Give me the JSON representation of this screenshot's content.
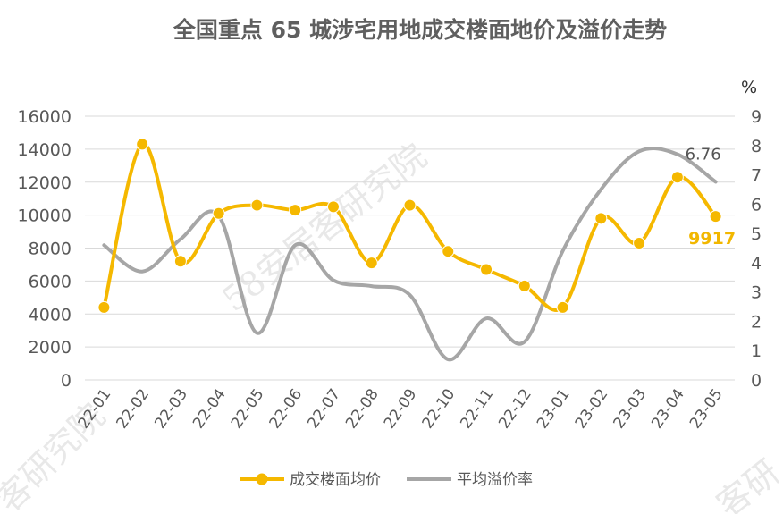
{
  "chart_data": {
    "type": "line",
    "title": "全国重点 65 城涉宅用地成交楼面地价及溢价走势",
    "categories": [
      "22-01",
      "22-02",
      "22-03",
      "22-04",
      "22-05",
      "22-06",
      "22-07",
      "22-08",
      "22-09",
      "22-10",
      "22-11",
      "22-12",
      "23-01",
      "23-02",
      "23-03",
      "23-04",
      "23-05"
    ],
    "series": [
      {
        "name": "成交楼面均价",
        "axis": "left",
        "color": "#f5b800",
        "values": [
          4400,
          14300,
          7200,
          10100,
          10600,
          10300,
          10500,
          7100,
          10600,
          7800,
          6700,
          5700,
          4400,
          9800,
          8300,
          12300,
          9917
        ]
      },
      {
        "name": "平均溢价率",
        "axis": "right",
        "color": "#a6a6a6",
        "values": [
          4.6,
          3.7,
          4.8,
          5.6,
          1.6,
          4.6,
          3.4,
          3.2,
          2.9,
          0.7,
          2.1,
          1.3,
          4.4,
          6.5,
          7.8,
          7.7,
          6.76
        ]
      }
    ],
    "y_left": {
      "min": 0,
      "max": 16000,
      "step": 2000
    },
    "y_right": {
      "min": 0,
      "max": 9,
      "step": 1,
      "unit": "%"
    },
    "data_labels": {
      "gold_last": "9917",
      "gray_last": "6.76"
    },
    "legend": {
      "position": "bottom"
    },
    "grid": true
  },
  "watermark": {
    "text_main": "58安居客研究院",
    "text_left": "客研究院",
    "text_corner": "客研"
  }
}
